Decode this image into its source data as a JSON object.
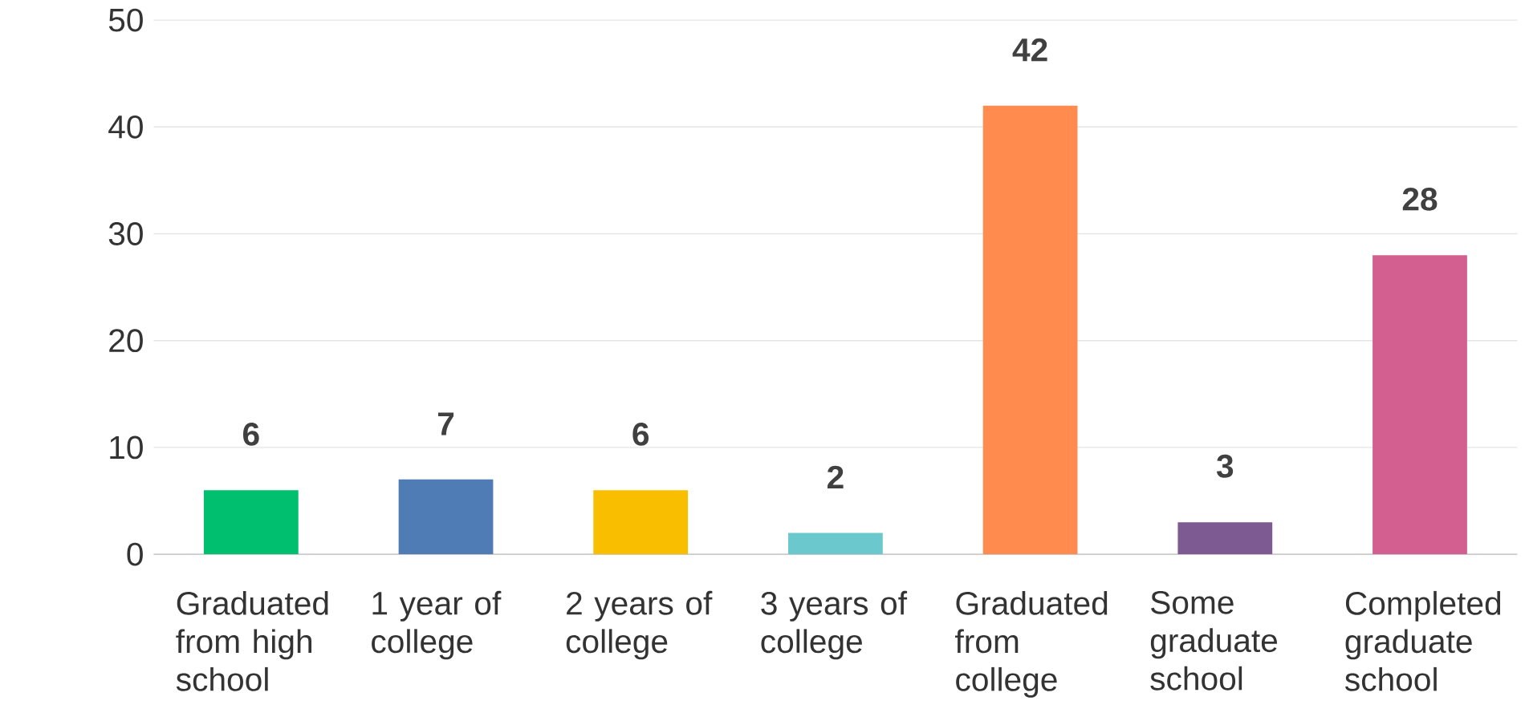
{
  "chart_data": {
    "type": "bar",
    "categories": [
      "Graduated from high school",
      "1 year of college",
      "2 years of college",
      "3 years of college",
      "Graduated from college",
      "Some graduate school",
      "Completed graduate school"
    ],
    "values": [
      6,
      7,
      6,
      2,
      42,
      3,
      28
    ],
    "colors": [
      "#00bf6f",
      "#507cb6",
      "#f9be00",
      "#6bc8cd",
      "#ff8b4f",
      "#7d5a91",
      "#d25f90"
    ],
    "ylim": [
      0,
      50
    ],
    "yticks": [
      0,
      10,
      20,
      30,
      40,
      50
    ],
    "grid": "y",
    "data_labels": true
  }
}
